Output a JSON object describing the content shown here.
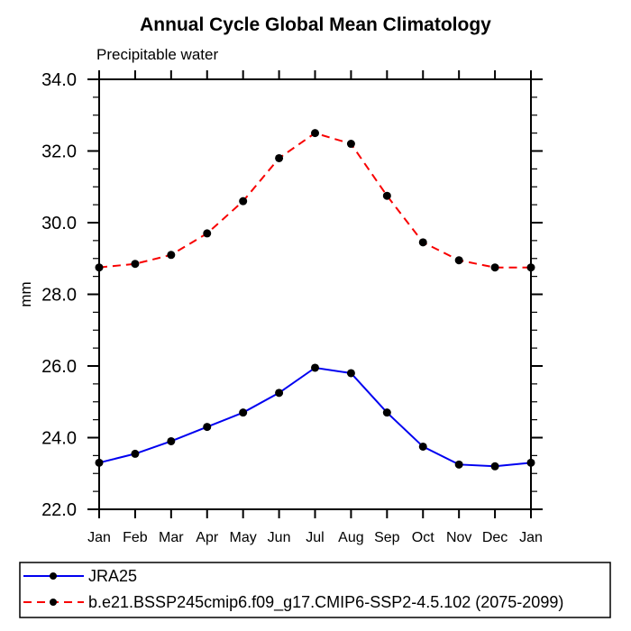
{
  "header": {
    "title": "Annual Cycle Global Mean Climatology",
    "subtitle": "Precipitable water"
  },
  "chart_data": {
    "type": "line",
    "title": "Annual Cycle Global Mean Climatology",
    "subtitle": "Precipitable water",
    "xlabel": "",
    "ylabel": "mm",
    "ylim": [
      22.0,
      34.0
    ],
    "ytick_major": 2.0,
    "ytick_minor": 0.5,
    "ytick_labels": [
      "22.0",
      "24.0",
      "26.0",
      "28.0",
      "30.0",
      "32.0",
      "34.0"
    ],
    "categories": [
      "Jan",
      "Feb",
      "Mar",
      "Apr",
      "May",
      "Jun",
      "Jul",
      "Aug",
      "Sep",
      "Oct",
      "Nov",
      "Dec",
      "Jan"
    ],
    "grid": false,
    "legend_position": "bottom",
    "frame_color": "#000000",
    "marker_shape": "filled-circle",
    "series": [
      {
        "name": "JRA25",
        "color": "#0000f0",
        "line_style": "solid",
        "marker_color": "#000000",
        "values": [
          23.3,
          23.55,
          23.9,
          24.3,
          24.7,
          25.25,
          25.95,
          25.8,
          24.7,
          23.75,
          23.25,
          23.2,
          23.3
        ]
      },
      {
        "name": "b.e21.BSSP245cmip6.f09_g17.CMIP6-SSP2-4.5.102 (2075-2099)",
        "color": "#f80000",
        "line_style": "dashed",
        "marker_color": "#000000",
        "values": [
          28.75,
          28.85,
          29.1,
          29.7,
          30.6,
          31.8,
          32.5,
          32.2,
          30.75,
          29.45,
          28.95,
          28.75,
          28.75
        ]
      }
    ]
  }
}
